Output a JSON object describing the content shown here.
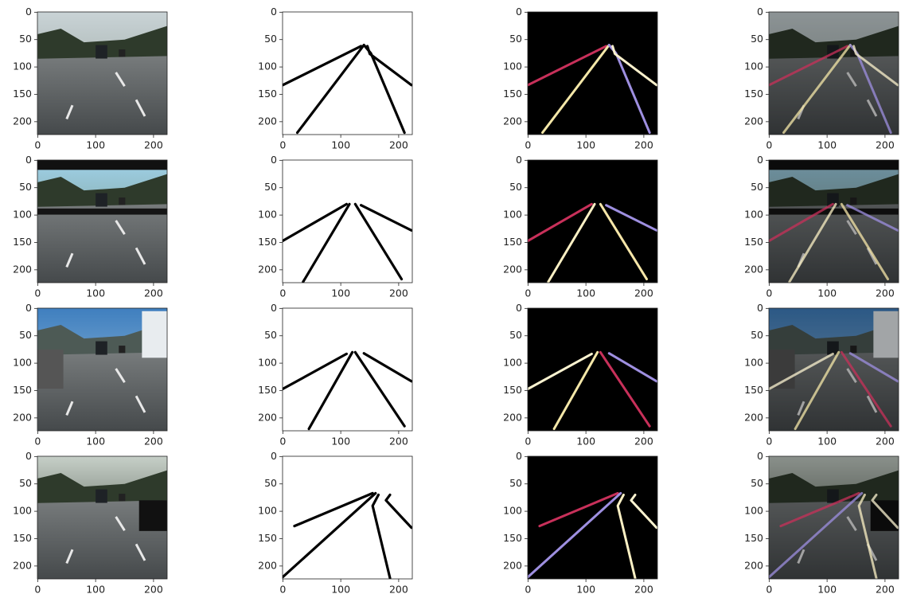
{
  "subplots": [
    {
      "xlim": [
        -0.5,
        223.5
      ],
      "ylim": [
        223.5,
        -0.5
      ],
      "xticks": [
        0,
        100,
        200
      ],
      "yticks": [
        0,
        50,
        100,
        150,
        200
      ]
    },
    {
      "xlim": [
        -0.5,
        223.5
      ],
      "ylim": [
        223.5,
        -0.5
      ],
      "xticks": [
        0,
        100,
        200
      ],
      "yticks": [
        0,
        50,
        100,
        150,
        200
      ]
    },
    {
      "xlim": [
        -0.5,
        223.5
      ],
      "ylim": [
        223.5,
        -0.5
      ],
      "xticks": [
        0,
        100,
        200
      ],
      "yticks": [
        0,
        50,
        100,
        150,
        200
      ]
    },
    {
      "xlim": [
        -0.5,
        223.5
      ],
      "ylim": [
        223.5,
        -0.5
      ],
      "xticks": [
        0,
        100,
        200
      ],
      "yticks": [
        0,
        50,
        100,
        150,
        200
      ]
    },
    {
      "xlim": [
        -0.5,
        223.5
      ],
      "ylim": [
        223.5,
        -0.5
      ],
      "xticks": [
        0,
        100,
        200
      ],
      "yticks": [
        0,
        50,
        100,
        150,
        200
      ]
    },
    {
      "xlim": [
        -0.5,
        223.5
      ],
      "ylim": [
        223.5,
        -0.5
      ],
      "xticks": [
        0,
        100,
        200
      ],
      "yticks": [
        0,
        50,
        100,
        150,
        200
      ]
    },
    {
      "xlim": [
        -0.5,
        223.5
      ],
      "ylim": [
        223.5,
        -0.5
      ],
      "xticks": [
        0,
        100,
        200
      ],
      "yticks": [
        0,
        50,
        100,
        150,
        200
      ]
    },
    {
      "xlim": [
        -0.5,
        223.5
      ],
      "ylim": [
        223.5,
        -0.5
      ],
      "xticks": [
        0,
        100,
        200
      ],
      "yticks": [
        0,
        50,
        100,
        150,
        200
      ]
    },
    {
      "xlim": [
        -0.5,
        223.5
      ],
      "ylim": [
        223.5,
        -0.5
      ],
      "xticks": [
        0,
        100,
        200
      ],
      "yticks": [
        0,
        50,
        100,
        150,
        200
      ]
    },
    {
      "xlim": [
        -0.5,
        223.5
      ],
      "ylim": [
        223.5,
        -0.5
      ],
      "xticks": [
        0,
        100,
        200
      ],
      "yticks": [
        0,
        50,
        100,
        150,
        200
      ]
    },
    {
      "xlim": [
        -0.5,
        223.5
      ],
      "ylim": [
        223.5,
        -0.5
      ],
      "xticks": [
        0,
        100,
        200
      ],
      "yticks": [
        0,
        50,
        100,
        150,
        200
      ]
    },
    {
      "xlim": [
        -0.5,
        223.5
      ],
      "ylim": [
        223.5,
        -0.5
      ],
      "xticks": [
        0,
        100,
        200
      ],
      "yticks": [
        0,
        50,
        100,
        150,
        200
      ]
    },
    {
      "xlim": [
        -0.5,
        223.5
      ],
      "ylim": [
        223.5,
        -0.5
      ],
      "xticks": [
        0,
        100,
        200
      ],
      "yticks": [
        0,
        50,
        100,
        150,
        200
      ]
    },
    {
      "xlim": [
        -0.5,
        223.5
      ],
      "ylim": [
        223.5,
        -0.5
      ],
      "xticks": [
        0,
        100,
        200
      ],
      "yticks": [
        0,
        50,
        100,
        150,
        200
      ]
    },
    {
      "xlim": [
        -0.5,
        223.5
      ],
      "ylim": [
        223.5,
        -0.5
      ],
      "xticks": [
        0,
        100,
        200
      ],
      "yticks": [
        0,
        50,
        100,
        150,
        200
      ]
    },
    {
      "xlim": [
        -0.5,
        223.5
      ],
      "ylim": [
        223.5,
        -0.5
      ],
      "xticks": [
        0,
        100,
        200
      ],
      "yticks": [
        0,
        50,
        100,
        150,
        200
      ]
    }
  ]
}
